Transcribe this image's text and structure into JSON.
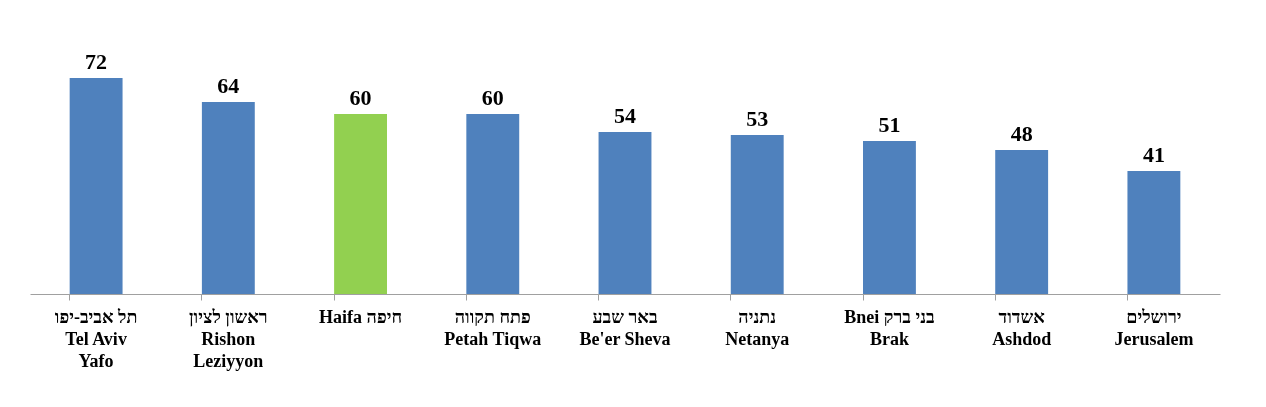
{
  "chart_data": {
    "type": "bar",
    "categories": [
      "תל אביב-יפו\nTel Aviv\nYafo",
      "ראשון לציון\nRishon\nLeziyyon",
      "Haifa חיפה",
      "פתח תקווה\nPetah Tiqwa",
      "באר שבע\nBe'er Sheva",
      "נתניה\nNetanya",
      "Bnei בני ברק\nBrak",
      "אשדוד\nAshdod",
      "ירושלים\nJerusalem"
    ],
    "values": [
      72,
      64,
      60,
      60,
      54,
      53,
      51,
      48,
      41
    ],
    "colors": [
      "#4f81bd",
      "#4f81bd",
      "#92d050",
      "#4f81bd",
      "#4f81bd",
      "#4f81bd",
      "#4f81bd",
      "#4f81bd",
      "#4f81bd"
    ],
    "tick_labels": "x",
    "data_labels": true
  }
}
